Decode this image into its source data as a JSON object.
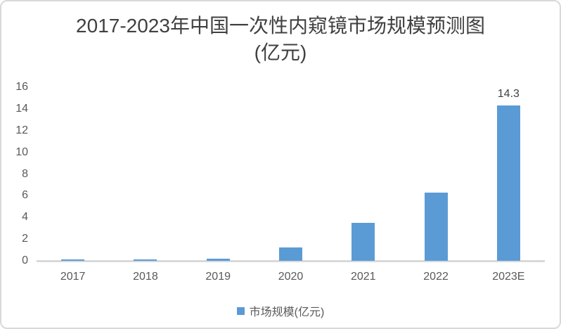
{
  "chart": {
    "title_line1": "2017-2023年中国一次性内窥镜市场规模预测图",
    "title_line2": "(亿元)",
    "legend_label": "市场规模(亿元)"
  },
  "chart_data": {
    "type": "bar",
    "title": "2017-2023年中国一次性内窥镜市场规模预测图(亿元)",
    "categories": [
      "2017",
      "2018",
      "2019",
      "2020",
      "2021",
      "2022",
      "2023E"
    ],
    "values": [
      0.1,
      0.15,
      0.2,
      1.2,
      3.5,
      6.3,
      14.3
    ],
    "data_labels": [
      "",
      "",
      "",
      "",
      "",
      "",
      "14.3"
    ],
    "series": [
      {
        "name": "市场规模(亿元)",
        "values": [
          0.1,
          0.15,
          0.2,
          1.2,
          3.5,
          6.3,
          14.3
        ]
      }
    ],
    "xlabel": "",
    "ylabel": "",
    "ylim": [
      0,
      16
    ],
    "yticks": [
      0,
      2,
      4,
      6,
      8,
      10,
      12,
      14,
      16
    ],
    "grid": false,
    "legend_position": "bottom",
    "colors": {
      "bar": "#5B9BD5",
      "title_text": "#404040",
      "axis_text": "#595959",
      "axis_line": "#D9D9D9",
      "frame_border": "#D9D9D9",
      "data_label_text": "#404040"
    }
  }
}
